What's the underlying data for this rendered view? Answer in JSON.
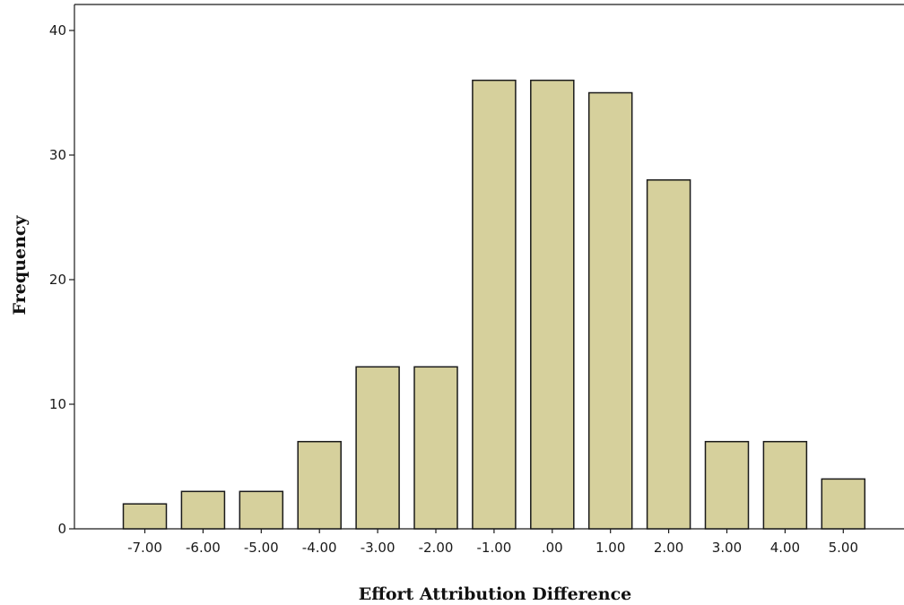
{
  "chart_data": {
    "type": "bar",
    "categories": [
      "-7.00",
      "-6.00",
      "-5.00",
      "-4.00",
      "-3.00",
      "-2.00",
      "-1.00",
      ".00",
      "1.00",
      "2.00",
      "3.00",
      "4.00",
      "5.00"
    ],
    "values": [
      2,
      3,
      3,
      7,
      13,
      13,
      36,
      36,
      35,
      28,
      7,
      7,
      4
    ],
    "xlabel": "Effort Attribution Difference",
    "ylabel": "Frequency",
    "ylim": [
      0,
      42
    ],
    "yticks": [
      "0",
      "10",
      "20",
      "30",
      "40"
    ],
    "grid": false,
    "colors": {
      "bar_fill": "#d6d09c",
      "bar_stroke": "#1a1a1a",
      "axis": "#1a1a1a",
      "background": "#ffffff"
    }
  }
}
